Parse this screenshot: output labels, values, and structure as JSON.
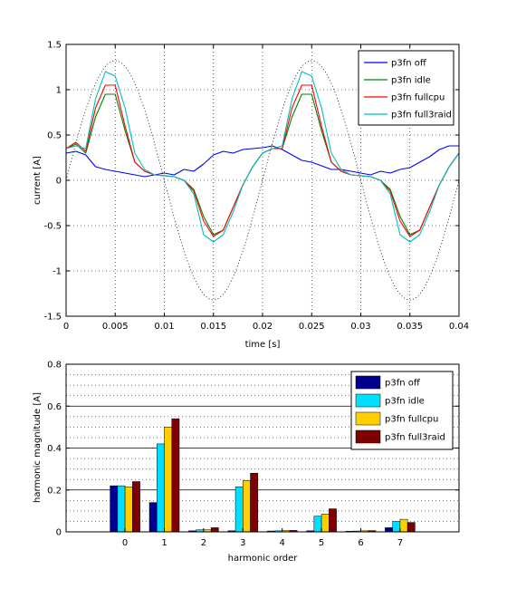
{
  "chart_data": [
    {
      "type": "line",
      "xlabel": "time [s]",
      "ylabel": "current [A]",
      "xlim": [
        0,
        0.04
      ],
      "ylim": [
        -1.5,
        1.5
      ],
      "x_ticks": [
        "0",
        "0.005",
        "0.01",
        "0.015",
        "0.02",
        "0.025",
        "0.03",
        "0.035",
        "0.04"
      ],
      "y_ticks": [
        "-1.5",
        "-1",
        "-0.5",
        "0",
        "0.5",
        "1",
        "1.5"
      ],
      "grid": "dotted",
      "legend_position": "top-right",
      "series": [
        {
          "name": "p3fn off",
          "color": "#0000ff",
          "x": [
            0,
            0.001,
            0.002,
            0.003,
            0.004,
            0.005,
            0.006,
            0.007,
            0.008,
            0.009,
            0.01,
            0.011,
            0.012,
            0.013,
            0.014,
            0.015,
            0.016,
            0.017,
            0.018,
            0.019,
            0.02,
            0.021,
            0.022,
            0.023,
            0.024,
            0.025,
            0.026,
            0.027,
            0.028,
            0.029,
            0.03,
            0.031,
            0.032,
            0.033,
            0.034,
            0.035,
            0.036,
            0.037,
            0.038,
            0.039,
            0.04
          ],
          "y": [
            0.3,
            0.32,
            0.28,
            0.15,
            0.12,
            0.1,
            0.08,
            0.06,
            0.04,
            0.06,
            0.08,
            0.06,
            0.12,
            0.1,
            0.18,
            0.28,
            0.32,
            0.3,
            0.34,
            0.35,
            0.36,
            0.38,
            0.34,
            0.28,
            0.22,
            0.2,
            0.16,
            0.12,
            0.12,
            0.1,
            0.08,
            0.06,
            0.1,
            0.08,
            0.12,
            0.14,
            0.2,
            0.26,
            0.34,
            0.38,
            0.38
          ]
        },
        {
          "name": "p3fn idle",
          "color": "#007f00",
          "x": [
            0,
            0.001,
            0.002,
            0.003,
            0.004,
            0.005,
            0.006,
            0.007,
            0.008,
            0.009,
            0.01,
            0.011,
            0.012,
            0.013,
            0.014,
            0.015,
            0.016,
            0.017,
            0.018,
            0.019,
            0.02,
            0.021,
            0.022,
            0.023,
            0.024,
            0.025,
            0.026,
            0.027,
            0.028,
            0.029,
            0.03,
            0.031,
            0.032,
            0.033,
            0.034,
            0.035,
            0.036,
            0.037,
            0.038,
            0.039,
            0.04
          ],
          "y": [
            0.35,
            0.4,
            0.3,
            0.7,
            0.95,
            0.95,
            0.55,
            0.2,
            0.1,
            0.06,
            0.05,
            0.04,
            0.0,
            -0.1,
            -0.4,
            -0.6,
            -0.55,
            -0.3,
            -0.05,
            0.15,
            0.3,
            0.35,
            0.35,
            0.7,
            0.95,
            0.95,
            0.55,
            0.2,
            0.1,
            0.06,
            0.05,
            0.04,
            0.0,
            -0.1,
            -0.4,
            -0.6,
            -0.55,
            -0.3,
            -0.05,
            0.15,
            0.3
          ]
        },
        {
          "name": "p3fn fullcpu",
          "color": "#ff0000",
          "x": [
            0,
            0.001,
            0.002,
            0.003,
            0.004,
            0.005,
            0.006,
            0.007,
            0.008,
            0.009,
            0.01,
            0.011,
            0.012,
            0.013,
            0.014,
            0.015,
            0.016,
            0.017,
            0.018,
            0.019,
            0.02,
            0.021,
            0.022,
            0.023,
            0.024,
            0.025,
            0.026,
            0.027,
            0.028,
            0.029,
            0.03,
            0.031,
            0.032,
            0.033,
            0.034,
            0.035,
            0.036,
            0.037,
            0.038,
            0.039,
            0.04
          ],
          "y": [
            0.35,
            0.42,
            0.32,
            0.8,
            1.05,
            1.05,
            0.6,
            0.2,
            0.1,
            0.06,
            0.05,
            0.04,
            0.0,
            -0.12,
            -0.45,
            -0.62,
            -0.55,
            -0.3,
            -0.05,
            0.15,
            0.3,
            0.35,
            0.35,
            0.8,
            1.05,
            1.05,
            0.6,
            0.2,
            0.1,
            0.06,
            0.05,
            0.04,
            0.0,
            -0.12,
            -0.45,
            -0.62,
            -0.55,
            -0.3,
            -0.05,
            0.15,
            0.3
          ]
        },
        {
          "name": "p3fn full3raid",
          "color": "#00bfbf",
          "x": [
            0,
            0.001,
            0.002,
            0.003,
            0.004,
            0.005,
            0.006,
            0.007,
            0.008,
            0.009,
            0.01,
            0.011,
            0.012,
            0.013,
            0.014,
            0.015,
            0.016,
            0.017,
            0.018,
            0.019,
            0.02,
            0.021,
            0.022,
            0.023,
            0.024,
            0.025,
            0.026,
            0.027,
            0.028,
            0.029,
            0.03,
            0.031,
            0.032,
            0.033,
            0.034,
            0.035,
            0.036,
            0.037,
            0.038,
            0.039,
            0.04
          ],
          "y": [
            0.35,
            0.38,
            0.35,
            0.9,
            1.2,
            1.15,
            0.8,
            0.3,
            0.12,
            0.06,
            0.05,
            0.04,
            0.0,
            -0.15,
            -0.6,
            -0.68,
            -0.6,
            -0.35,
            -0.05,
            0.15,
            0.3,
            0.35,
            0.38,
            0.9,
            1.2,
            1.15,
            0.8,
            0.3,
            0.12,
            0.06,
            0.05,
            0.04,
            0.0,
            -0.15,
            -0.6,
            -0.68,
            -0.6,
            -0.35,
            -0.05,
            0.15,
            0.3
          ]
        }
      ],
      "reference_sine": {
        "amplitude": 1.32,
        "frequency_hz": 50,
        "style": "dotted",
        "color": "#000000"
      }
    },
    {
      "type": "bar",
      "xlabel": "harmonic order",
      "ylabel": "harmonic magnitude [A]",
      "ylim": [
        0,
        0.8
      ],
      "categories": [
        "0",
        "1",
        "2",
        "3",
        "4",
        "5",
        "6",
        "7"
      ],
      "y_ticks": [
        "0",
        "0.2",
        "0.4",
        "0.6",
        "0.8"
      ],
      "grid": "dotted",
      "legend_position": "top-right",
      "series": [
        {
          "name": "p3fn off",
          "color": "#00008f",
          "values": [
            0.22,
            0.14,
            0.005,
            0.005,
            0.004,
            0.005,
            0.003,
            0.02
          ]
        },
        {
          "name": "p3fn idle",
          "color": "#00dfff",
          "values": [
            0.22,
            0.42,
            0.01,
            0.215,
            0.005,
            0.075,
            0.004,
            0.05
          ]
        },
        {
          "name": "p3fn fullcpu",
          "color": "#ffcf00",
          "values": [
            0.215,
            0.5,
            0.01,
            0.245,
            0.006,
            0.085,
            0.005,
            0.06
          ]
        },
        {
          "name": "p3fn full3raid",
          "color": "#7f0000",
          "values": [
            0.24,
            0.54,
            0.02,
            0.28,
            0.007,
            0.11,
            0.006,
            0.045
          ]
        }
      ]
    }
  ]
}
